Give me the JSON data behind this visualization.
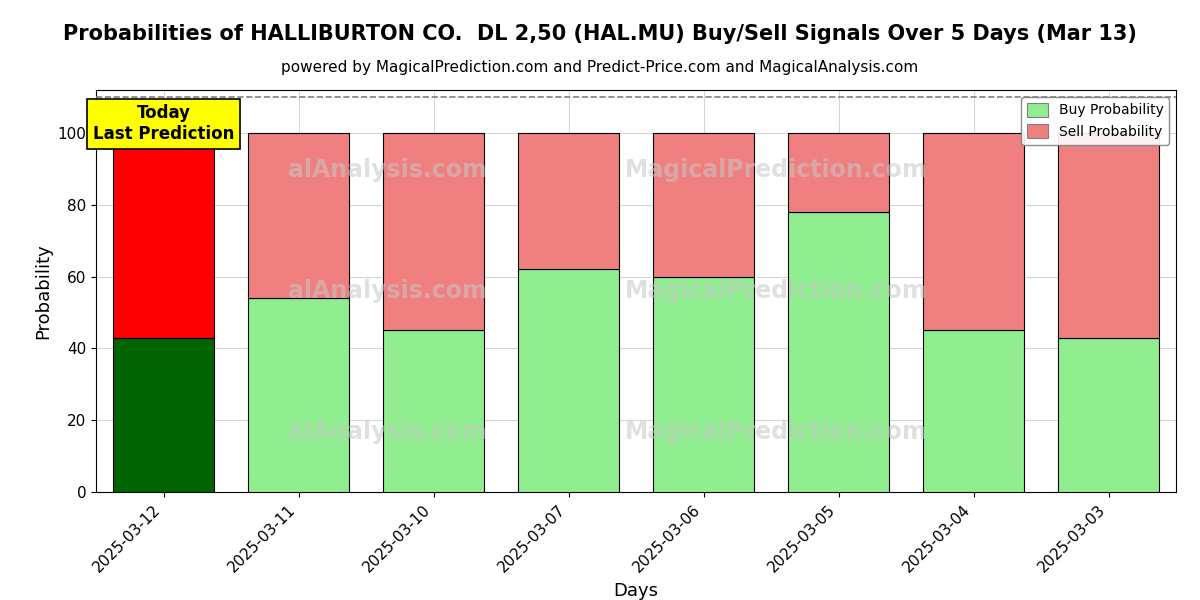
{
  "title": "Probabilities of HALLIBURTON CO.  DL 2,50 (HAL.MU) Buy/Sell Signals Over 5 Days (Mar 13)",
  "subtitle": "powered by MagicalPrediction.com and Predict-Price.com and MagicalAnalysis.com",
  "xlabel": "Days",
  "ylabel": "Probability",
  "categories": [
    "2025-03-12",
    "2025-03-11",
    "2025-03-10",
    "2025-03-07",
    "2025-03-06",
    "2025-03-05",
    "2025-03-04",
    "2025-03-03"
  ],
  "buy_values": [
    43,
    54,
    45,
    62,
    60,
    78,
    45,
    43
  ],
  "sell_values": [
    57,
    46,
    55,
    38,
    40,
    22,
    55,
    57
  ],
  "today_buy_color": "#006400",
  "today_sell_color": "#ff0000",
  "buy_color": "#90EE90",
  "sell_color": "#F08080",
  "today_label_bg": "#ffff00",
  "today_label_text": "Today\nLast Prediction",
  "ylim": [
    0,
    112
  ],
  "yticks": [
    0,
    20,
    40,
    60,
    80,
    100
  ],
  "dashed_line_y": 110,
  "legend_buy": "Buy Probability",
  "legend_sell": "Sell Probability",
  "watermark_lines_top": [
    "alAnalysis.com",
    "MagicalPrediction.com"
  ],
  "watermark_lines_mid": [
    "alAnalysis.com",
    "MagicalPrediction.com"
  ],
  "watermark_lines_bot": [
    "alAnalysis.com",
    "MagicalPrediction.com"
  ],
  "title_fontsize": 15,
  "subtitle_fontsize": 11,
  "background_color": "#ffffff"
}
